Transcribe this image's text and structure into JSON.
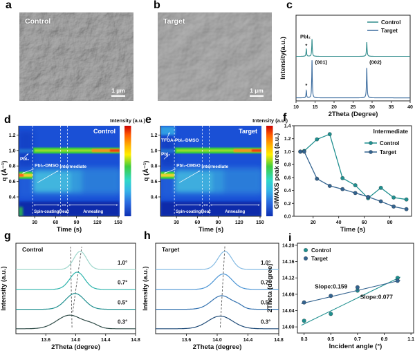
{
  "panels": {
    "a": {
      "letter": "a",
      "label": "Control",
      "scale_bar": "1 µm"
    },
    "b": {
      "letter": "b",
      "label": "Target",
      "scale_bar": "1 µm"
    },
    "c": {
      "letter": "c"
    },
    "d": {
      "letter": "d"
    },
    "e": {
      "letter": "e"
    },
    "f": {
      "letter": "f"
    },
    "g": {
      "letter": "g"
    },
    "h": {
      "letter": "h"
    },
    "i": {
      "letter": "i"
    }
  },
  "colors": {
    "control": "#1f8f8f",
    "target": "#33638f"
  },
  "chart_data": {
    "c": {
      "type": "line",
      "xlabel": "2Theta (Degree)",
      "ylabel": "Intensity(a.u.)",
      "xlim": [
        10,
        40
      ],
      "xticks": [
        10,
        15,
        20,
        25,
        30,
        35,
        40
      ],
      "xdec": 0,
      "legend": [
        {
          "label": "Control",
          "color": "#2e8b8b"
        },
        {
          "label": "Target",
          "color": "#3a6b9e"
        }
      ],
      "annotations": {
        "pbi2": "PbI₂",
        "star": "*",
        "p001": "(001)",
        "p002": "(002)"
      },
      "series": [
        {
          "name": "Control",
          "color": "#2e8b8b",
          "baseline": 0.52,
          "peaks": [
            {
              "x": 12.7,
              "h": 0.085,
              "w": 0.09
            },
            {
              "x": 14.2,
              "h": 0.2,
              "w": 0.09
            },
            {
              "x": 28.6,
              "h": 0.165,
              "w": 0.1
            }
          ]
        },
        {
          "name": "Target",
          "color": "#3a6b9e",
          "baseline": 0.035,
          "peaks": [
            {
              "x": 12.7,
              "h": 0.085,
              "w": 0.09
            },
            {
              "x": 14.2,
              "h": 0.44,
              "w": 0.09
            },
            {
              "x": 28.6,
              "h": 0.35,
              "w": 0.1
            }
          ]
        }
      ]
    },
    "d": {
      "type": "heatmap",
      "title": "Control",
      "colorbar_title": "Intensity (a.u.)",
      "xlabel": "Time (s)",
      "ylabel": "q (Å⁻¹)",
      "xlim": [
        7,
        152
      ],
      "xticks": [
        30,
        60,
        90,
        120,
        150
      ],
      "xdec": 0,
      "ylim": [
        0.15,
        1.32
      ],
      "yticks": [
        0.4,
        0.6,
        0.8,
        1.0,
        1.2
      ],
      "ydec": 1,
      "base_color": "#1a50d6",
      "colorbar_stops": [
        [
          0,
          "#cc0000"
        ],
        [
          10,
          "#ff5a00"
        ],
        [
          22,
          "#ffb400"
        ],
        [
          32,
          "#ffee00"
        ],
        [
          45,
          "#3ecc3e"
        ],
        [
          60,
          "#2fd8c8"
        ],
        [
          72,
          "#35b4e8"
        ],
        [
          85,
          "#2a6ae0"
        ],
        [
          100,
          "#0d2fb2"
        ]
      ],
      "dashed_t": [
        27,
        67,
        77
      ],
      "stages": [
        {
          "t0": 27,
          "t1": 67,
          "label": "Spin-coating"
        },
        {
          "t0": 67,
          "t1": 77,
          "label": "Heat"
        },
        {
          "t0": 77,
          "t1": 151,
          "label": "Annealing"
        }
      ],
      "bands": [
        {
          "t0": 7,
          "t1": 152,
          "q0": 0.15,
          "q1": 0.34,
          "c": "#0c2caa",
          "o": 1,
          "bl": 2
        },
        {
          "t0": 7,
          "t1": 152,
          "q0": 0.4,
          "q1": 0.8,
          "c": "#2f7ae0",
          "o": 0.3,
          "bl": 4
        },
        {
          "t0": 7,
          "t1": 28,
          "q0": 0.78,
          "q1": 1.25,
          "c": "#0e32b4",
          "o": 0.45,
          "bl": 4
        },
        {
          "t0": 28,
          "t1": 152,
          "q0": 0.45,
          "q1": 0.76,
          "c": "#45cfe0",
          "o": 0.55,
          "bl": 4
        },
        {
          "t0": 28,
          "t1": 82,
          "q0": 0.47,
          "q1": 0.72,
          "c": "#55dce2",
          "o": 0.4,
          "bl": 3
        },
        {
          "t0": 98,
          "t1": 152,
          "q0": 0.42,
          "q1": 0.78,
          "c": "#1a50d6",
          "o": 0.4,
          "bl": 4
        },
        {
          "t0": 7,
          "t1": 27,
          "q0": 0.635,
          "q1": 0.725,
          "c": "#35d53a",
          "o": 1,
          "bl": 1
        },
        {
          "t0": 7,
          "t1": 27,
          "q0": 0.66,
          "q1": 0.7,
          "c": "#ffd22e",
          "o": 0.9,
          "bl": 1
        },
        {
          "t0": 7,
          "t1": 14,
          "q0": 0.662,
          "q1": 0.698,
          "c": "#ff5a1e",
          "o": 0.9,
          "bl": 1
        },
        {
          "t0": 7,
          "t1": 27,
          "q0": 0.97,
          "q1": 1.02,
          "c": "#2f9fd8",
          "o": 0.5,
          "bl": 2
        },
        {
          "t0": 28,
          "t1": 152,
          "q0": 0.962,
          "q1": 1.038,
          "c": "#35cf3a",
          "o": 1,
          "bl": 1
        },
        {
          "t0": 30,
          "t1": 150,
          "q0": 0.985,
          "q1": 1.015,
          "c": "#b8e02a",
          "o": 0.75,
          "bl": 1
        },
        {
          "t0": 112,
          "t1": 152,
          "q0": 0.978,
          "q1": 1.022,
          "c": "#ff8c1e",
          "o": 0.85,
          "bl": 1
        },
        {
          "t0": 138,
          "t1": 152,
          "q0": 0.985,
          "q1": 1.015,
          "c": "#e83510",
          "o": 0.9,
          "bl": 1
        },
        {
          "t0": 7,
          "t1": 13,
          "q0": 0.15,
          "q1": 0.27,
          "c": "#35d53a",
          "o": 0.75,
          "bl": 2
        }
      ],
      "annotations": [
        {
          "label": "PbI₂",
          "t": 9,
          "q": 0.875,
          "arrow": [
            14,
            0.905,
            21,
            0.96
          ]
        },
        {
          "label": "PbI₂-DMSO",
          "t": 30,
          "q": 0.79,
          "arrow": [
            29,
            0.762,
            12,
            0.706
          ]
        },
        {
          "label": "Intermediate",
          "t": 66,
          "q": 0.775,
          "arrow": [
            34,
            0.585,
            64,
            0.74
          ]
        }
      ]
    },
    "e": {
      "type": "heatmap",
      "title": "Target",
      "colorbar_title": "Intensity (a.u.)",
      "xlabel": "Time (s)",
      "ylabel": "q (Å⁻¹)",
      "xlim": [
        7,
        152
      ],
      "xticks": [
        30,
        60,
        90,
        120,
        150
      ],
      "xdec": 0,
      "ylim": [
        0.15,
        1.32
      ],
      "yticks": [
        0.4,
        0.6,
        0.8,
        1.0,
        1.2
      ],
      "ydec": 1,
      "base_color": "#1a50d6",
      "colorbar_stops": [
        [
          0,
          "#cc0000"
        ],
        [
          10,
          "#ff5a00"
        ],
        [
          22,
          "#ffb400"
        ],
        [
          32,
          "#ffee00"
        ],
        [
          45,
          "#3ecc3e"
        ],
        [
          60,
          "#2fd8c8"
        ],
        [
          72,
          "#35b4e8"
        ],
        [
          85,
          "#2a6ae0"
        ],
        [
          100,
          "#0d2fb2"
        ]
      ],
      "dashed_t": [
        27,
        67,
        77
      ],
      "stages": [
        {
          "t0": 27,
          "t1": 67,
          "label": "Spin-coating"
        },
        {
          "t0": 67,
          "t1": 77,
          "label": "Heat"
        },
        {
          "t0": 77,
          "t1": 151,
          "label": "Annealing"
        }
      ],
      "bands": [
        {
          "t0": 7,
          "t1": 152,
          "q0": 0.15,
          "q1": 0.34,
          "c": "#0c2caa",
          "o": 1,
          "bl": 2
        },
        {
          "t0": 7,
          "t1": 152,
          "q0": 0.4,
          "q1": 0.8,
          "c": "#2f7ae0",
          "o": 0.3,
          "bl": 4
        },
        {
          "t0": 7,
          "t1": 28,
          "q0": 0.78,
          "q1": 1.18,
          "c": "#0e32b4",
          "o": 0.5,
          "bl": 4
        },
        {
          "t0": 7,
          "t1": 28,
          "q0": 1.2,
          "q1": 1.31,
          "c": "#39b8e8",
          "o": 0.75,
          "bl": 2
        },
        {
          "t0": 28,
          "t1": 152,
          "q0": 0.45,
          "q1": 0.76,
          "c": "#45cfe0",
          "o": 0.5,
          "bl": 4
        },
        {
          "t0": 28,
          "t1": 82,
          "q0": 0.47,
          "q1": 0.72,
          "c": "#55dce2",
          "o": 0.35,
          "bl": 3
        },
        {
          "t0": 98,
          "t1": 152,
          "q0": 0.42,
          "q1": 0.78,
          "c": "#1a50d6",
          "o": 0.35,
          "bl": 4
        },
        {
          "t0": 7,
          "t1": 27,
          "q0": 0.635,
          "q1": 0.725,
          "c": "#35d53a",
          "o": 1,
          "bl": 1
        },
        {
          "t0": 7,
          "t1": 27,
          "q0": 0.66,
          "q1": 0.7,
          "c": "#ffd22e",
          "o": 0.9,
          "bl": 1
        },
        {
          "t0": 7,
          "t1": 27,
          "q0": 0.97,
          "q1": 1.02,
          "c": "#2f9fd8",
          "o": 0.5,
          "bl": 2
        },
        {
          "t0": 28,
          "t1": 152,
          "q0": 0.962,
          "q1": 1.038,
          "c": "#35cf3a",
          "o": 1,
          "bl": 1
        },
        {
          "t0": 30,
          "t1": 150,
          "q0": 0.985,
          "q1": 1.015,
          "c": "#b8e02a",
          "o": 0.75,
          "bl": 1
        },
        {
          "t0": 112,
          "t1": 152,
          "q0": 0.978,
          "q1": 1.022,
          "c": "#ff8c1e",
          "o": 0.85,
          "bl": 1
        },
        {
          "t0": 138,
          "t1": 152,
          "q0": 0.985,
          "q1": 1.015,
          "c": "#e83510",
          "o": 0.9,
          "bl": 1
        }
      ],
      "annotations": [
        {
          "label": "TFOA-PbI₂-DMSO",
          "t": 8,
          "q": 1.115,
          "arrow": [
            16,
            1.145,
            20,
            1.235
          ]
        },
        {
          "label": "PbI₂",
          "t": 8,
          "q": 0.935,
          "arrow": [
            12,
            0.888,
            18,
            0.938
          ]
        },
        {
          "label": "PbI₂-DMSO",
          "t": 30,
          "q": 0.79,
          "arrow": [
            29,
            0.762,
            12,
            0.706
          ]
        },
        {
          "label": "Intermediate",
          "t": 66,
          "q": 0.775,
          "arrow": [
            34,
            0.585,
            64,
            0.74
          ]
        }
      ]
    },
    "f": {
      "type": "line",
      "title": "Intermediate",
      "xlabel": "Time (s)",
      "ylabel": "GIWAXS peak area (a.u.)",
      "xlim": [
        5,
        97
      ],
      "xticks": [
        20,
        40,
        60,
        80
      ],
      "xdec": 0,
      "ylim": [
        0,
        1.4
      ],
      "yticks": [
        0.0,
        0.2,
        0.4,
        0.6,
        0.8,
        1.0,
        1.2,
        1.4
      ],
      "ydec": 1,
      "series": [
        {
          "name": "Control",
          "color": "#1f8f8f",
          "points": [
            [
              10,
              1.0
            ],
            [
              13,
              1.01
            ],
            [
              23,
              1.19
            ],
            [
              33,
              1.27
            ],
            [
              43,
              0.59
            ],
            [
              53,
              0.48
            ],
            [
              63,
              0.28
            ],
            [
              73,
              0.44
            ],
            [
              83,
              0.29
            ],
            [
              93,
              0.26
            ]
          ]
        },
        {
          "name": "Target",
          "color": "#33638f",
          "points": [
            [
              10,
              1.0
            ],
            [
              13,
              1.0
            ],
            [
              23,
              0.58
            ],
            [
              33,
              0.47
            ],
            [
              43,
              0.42
            ],
            [
              53,
              0.36
            ],
            [
              63,
              0.3
            ],
            [
              73,
              0.23
            ],
            [
              83,
              0.15
            ],
            [
              93,
              0.11
            ]
          ]
        }
      ]
    },
    "g": {
      "type": "stacked-peaks",
      "title": "Control",
      "xlabel": "2Theta (degree)",
      "ylabel": "Intensity (a.u.)",
      "xlim": [
        13.2,
        14.8
      ],
      "xticks": [
        13.6,
        14.0,
        14.4,
        14.8
      ],
      "xdec": 1,
      "curves": [
        {
          "label": "0.3°",
          "color": "#2e4a46",
          "offset": 0.055,
          "peaks": [
            {
              "c": 13.92,
              "s": 0.17,
              "h": 0.15
            },
            {
              "c": 14.22,
              "s": 0.09,
              "h": 0.035
            }
          ]
        },
        {
          "label": "0.5°",
          "color": "#1f8f8f",
          "offset": 0.27,
          "peaks": [
            {
              "c": 13.99,
              "s": 0.125,
              "h": 0.175
            }
          ]
        },
        {
          "label": "0.7°",
          "color": "#2ab3ab",
          "offset": 0.49,
          "peaks": [
            {
              "c": 14.02,
              "s": 0.1,
              "h": 0.19
            }
          ]
        },
        {
          "label": "1.0°",
          "color": "#9dd6cb",
          "offset": 0.71,
          "peaks": [
            {
              "c": 14.06,
              "s": 0.085,
              "h": 0.2
            }
          ]
        }
      ],
      "guides": [
        {
          "x1": 13.95,
          "f1": 0.07,
          "x2": 13.93,
          "f2": 0.96
        },
        {
          "x1": 13.96,
          "f1": 0.24,
          "x2": 14.08,
          "f2": 0.96
        }
      ]
    },
    "h": {
      "type": "stacked-peaks",
      "title": "Target",
      "xlabel": "2Theta (degree)",
      "ylabel": "Intensity (a.u.)",
      "xlim": [
        13.2,
        14.8
      ],
      "xticks": [
        13.6,
        14.0,
        14.4,
        14.8
      ],
      "xdec": 1,
      "curves": [
        {
          "label": "0.3°",
          "color": "#1d4976",
          "offset": 0.055,
          "peaks": [
            {
              "c": 14.04,
              "s": 0.16,
              "h": 0.14
            }
          ]
        },
        {
          "label": "0.5°",
          "color": "#2f6fae",
          "offset": 0.27,
          "peaks": [
            {
              "c": 14.06,
              "s": 0.135,
              "h": 0.15
            },
            {
              "c": 14.28,
              "s": 0.06,
              "h": 0.025
            }
          ]
        },
        {
          "label": "0.7°",
          "color": "#4a94d4",
          "offset": 0.49,
          "peaks": [
            {
              "c": 14.08,
              "s": 0.115,
              "h": 0.17
            }
          ]
        },
        {
          "label": "1.0°",
          "color": "#85bbe3",
          "offset": 0.71,
          "peaks": [
            {
              "c": 14.1,
              "s": 0.09,
              "h": 0.2
            }
          ]
        }
      ],
      "guides": [
        {
          "x1": 14.04,
          "f1": 0.07,
          "x2": 14.1,
          "f2": 0.97
        }
      ]
    },
    "i": {
      "type": "scatter",
      "xlabel": "Incident angle (°)",
      "ylabel": "2Theta (degree)",
      "xlim": [
        0.25,
        1.12
      ],
      "xticks": [
        0.3,
        0.5,
        0.7,
        0.9,
        1.1
      ],
      "xdec": 1,
      "ylim": [
        13.985,
        14.205
      ],
      "yticks": [
        14.0,
        14.04,
        14.08,
        14.12,
        14.16,
        14.2
      ],
      "ydec": 2,
      "series": [
        {
          "name": "Control",
          "color": "#1f8f8f",
          "points": [
            [
              0.3,
              14.015
            ],
            [
              0.5,
              14.032
            ],
            [
              0.7,
              14.089
            ],
            [
              1.0,
              14.12
            ]
          ],
          "fit": [
            [
              0.28,
              14.004
            ],
            [
              1.02,
              14.122
            ]
          ],
          "slope_label": "Slope:0.159",
          "slope_pos": [
            0.38,
            14.094
          ]
        },
        {
          "name": "Target",
          "color": "#33638f",
          "points": [
            [
              0.3,
              14.06
            ],
            [
              0.5,
              14.076
            ],
            [
              0.7,
              14.097
            ],
            [
              1.0,
              14.113
            ]
          ],
          "fit": [
            [
              0.28,
              14.057
            ],
            [
              1.02,
              14.114
            ]
          ],
          "slope_label": "Slope:0.077",
          "slope_pos": [
            0.72,
            14.069
          ]
        }
      ]
    }
  }
}
